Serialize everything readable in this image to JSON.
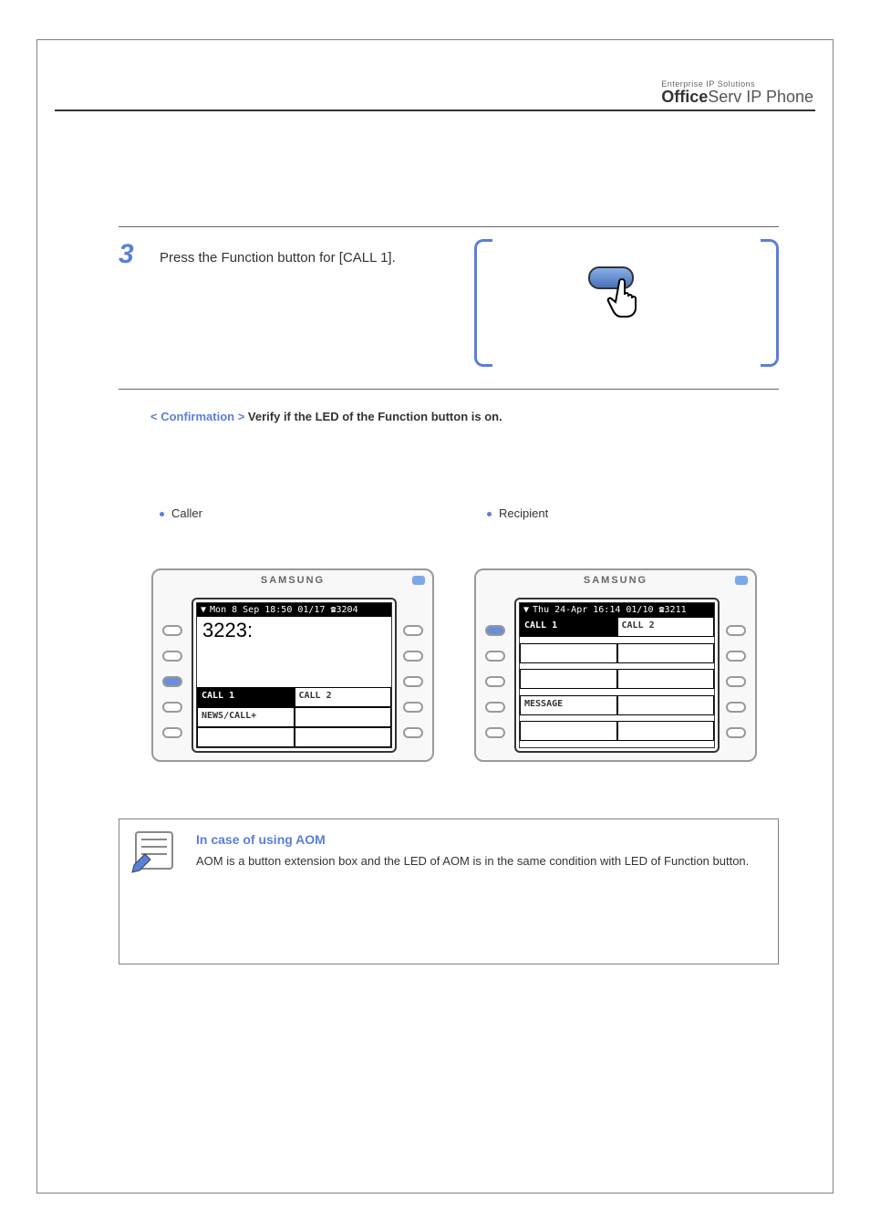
{
  "header": {
    "tagline": "Enterprise IP Solutions",
    "logo_bold": "Office",
    "logo_light": "Serv",
    "logo_suffix": " IP Phone"
  },
  "step": {
    "number": "3",
    "text": "Press the Function button for [CALL 1]."
  },
  "confirm_label_prefix": "< ",
  "confirm_label": "Confirmation ",
  "confirm_label_suffix": ">",
  "confirm_text": " Verify if the LED of the Function button is on.",
  "bullet_left": "Caller",
  "bullet_right": "Recipient",
  "phone_a": {
    "brand": "SAMSUNG",
    "statusbar": "Mon  8 Sep 18:50 01/17 ☎3204",
    "typed": "3223:",
    "cells": [
      "CALL 1",
      "CALL 2",
      "NEWS/CALL+",
      "",
      "",
      ""
    ],
    "active_cell": 0,
    "sidekeys_left": [
      false,
      false,
      true,
      false,
      false
    ],
    "sidekeys_right": [
      false,
      false,
      false,
      false,
      false
    ]
  },
  "phone_b": {
    "brand": "SAMSUNG",
    "statusbar": "Thu 24-Apr 16:14 01/10 ☎3211",
    "cells": [
      "CALL 1",
      "CALL 2",
      "",
      "",
      "",
      "",
      "MESSAGE",
      "",
      "",
      ""
    ],
    "active_cell": 0,
    "sidekeys_left": [
      true,
      false,
      false,
      false,
      false
    ],
    "sidekeys_right": [
      false,
      false,
      false,
      false,
      false
    ]
  },
  "note": {
    "title": "In case of using AOM",
    "body": "AOM is a button extension box and the LED of AOM is in the same condition with LED of Function button."
  },
  "colors": {
    "accent": "#5a7fd8",
    "gray_border": "#808080"
  }
}
